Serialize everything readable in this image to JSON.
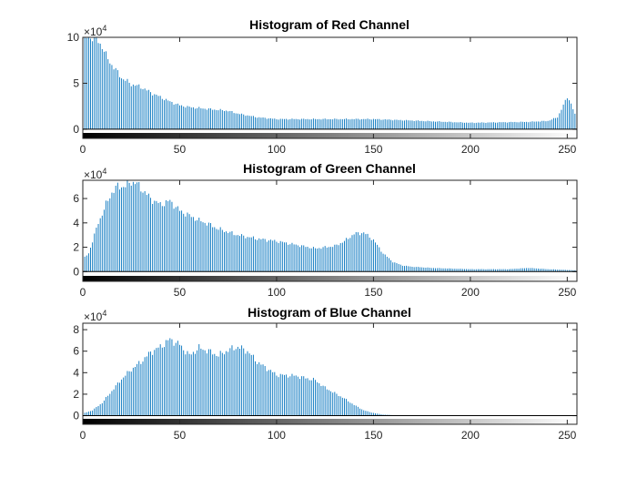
{
  "figure": {
    "background": "#ffffff",
    "axis_color": "#262626",
    "bar_color": "#0072BD"
  },
  "chart_data": [
    {
      "type": "bar",
      "title": "Histogram of Red Channel",
      "xlabel": "",
      "ylabel": "",
      "xlim": [
        0,
        255
      ],
      "ylim": [
        -1,
        10
      ],
      "y_exponent_label": "×10",
      "y_exponent": "4",
      "xticks": [
        0,
        50,
        100,
        150,
        200,
        250
      ],
      "yticks": [
        0,
        5,
        10
      ],
      "grid": false,
      "colorbar": "grayscale gradient strip along x-axis",
      "anchors_x": [
        0,
        3,
        6,
        8,
        10,
        12,
        15,
        20,
        25,
        30,
        35,
        40,
        45,
        50,
        55,
        60,
        65,
        70,
        75,
        80,
        90,
        100,
        110,
        120,
        150,
        200,
        230,
        240,
        245,
        248,
        250,
        251,
        252,
        253,
        254,
        255
      ],
      "anchors_y": [
        10,
        10,
        10,
        9.6,
        9,
        8,
        7,
        5.6,
        4.9,
        4.6,
        4.0,
        3.5,
        3.0,
        2.6,
        2.4,
        2.3,
        2.2,
        2.1,
        2.0,
        1.7,
        1.3,
        1.1,
        1.1,
        1.1,
        1.1,
        0.7,
        0.8,
        0.9,
        1.3,
        2.6,
        3.5,
        3.2,
        2.8,
        2.2,
        1.6,
        1.0
      ]
    },
    {
      "type": "bar",
      "title": "Histogram of Green Channel",
      "xlabel": "",
      "ylabel": "",
      "xlim": [
        0,
        255
      ],
      "ylim": [
        -0.8,
        7.5
      ],
      "y_exponent_label": "×10",
      "y_exponent": "4",
      "xticks": [
        0,
        50,
        100,
        150,
        200,
        250
      ],
      "yticks": [
        0,
        2,
        4,
        6
      ],
      "grid": false,
      "colorbar": "grayscale gradient strip along x-axis",
      "anchors_x": [
        0,
        3,
        5,
        8,
        12,
        15,
        18,
        22,
        25,
        28,
        32,
        35,
        40,
        45,
        50,
        55,
        60,
        65,
        70,
        80,
        90,
        100,
        110,
        120,
        130,
        135,
        140,
        145,
        150,
        155,
        160,
        165,
        170,
        180,
        200,
        220,
        230,
        240,
        255
      ],
      "anchors_y": [
        1.0,
        1.5,
        2.5,
        4.0,
        5.5,
        6.5,
        7.0,
        7.0,
        7.4,
        7.2,
        6.5,
        6.0,
        5.5,
        5.8,
        5.0,
        4.6,
        4.2,
        3.9,
        3.5,
        3.0,
        2.7,
        2.5,
        2.2,
        1.9,
        2.1,
        2.5,
        3.1,
        3.2,
        2.6,
        1.5,
        0.8,
        0.5,
        0.4,
        0.3,
        0.2,
        0.2,
        0.3,
        0.2,
        0.1
      ]
    },
    {
      "type": "bar",
      "title": "Histogram of Blue Channel",
      "xlabel": "",
      "ylabel": "",
      "xlim": [
        0,
        255
      ],
      "ylim": [
        -0.8,
        8.6
      ],
      "y_exponent_label": "×10",
      "y_exponent": "4",
      "xticks": [
        0,
        50,
        100,
        150,
        200,
        250
      ],
      "yticks": [
        0,
        2,
        4,
        6,
        8
      ],
      "grid": false,
      "colorbar": "grayscale gradient strip along x-axis",
      "anchors_x": [
        0,
        5,
        10,
        15,
        20,
        25,
        30,
        35,
        40,
        45,
        50,
        55,
        60,
        65,
        70,
        75,
        80,
        85,
        90,
        95,
        100,
        110,
        120,
        125,
        130,
        135,
        140,
        145,
        150,
        155,
        160,
        170,
        180,
        200,
        255
      ],
      "anchors_y": [
        0.2,
        0.5,
        1.2,
        2.3,
        3.4,
        4.3,
        5.0,
        5.9,
        6.4,
        7.1,
        6.6,
        5.6,
        6.3,
        6.0,
        5.6,
        6.1,
        6.4,
        6.0,
        5.0,
        4.4,
        3.8,
        3.7,
        3.3,
        2.6,
        2.1,
        1.6,
        1.0,
        0.5,
        0.25,
        0.1,
        0.05,
        0.0,
        0.0,
        0.0,
        0.0
      ]
    }
  ]
}
